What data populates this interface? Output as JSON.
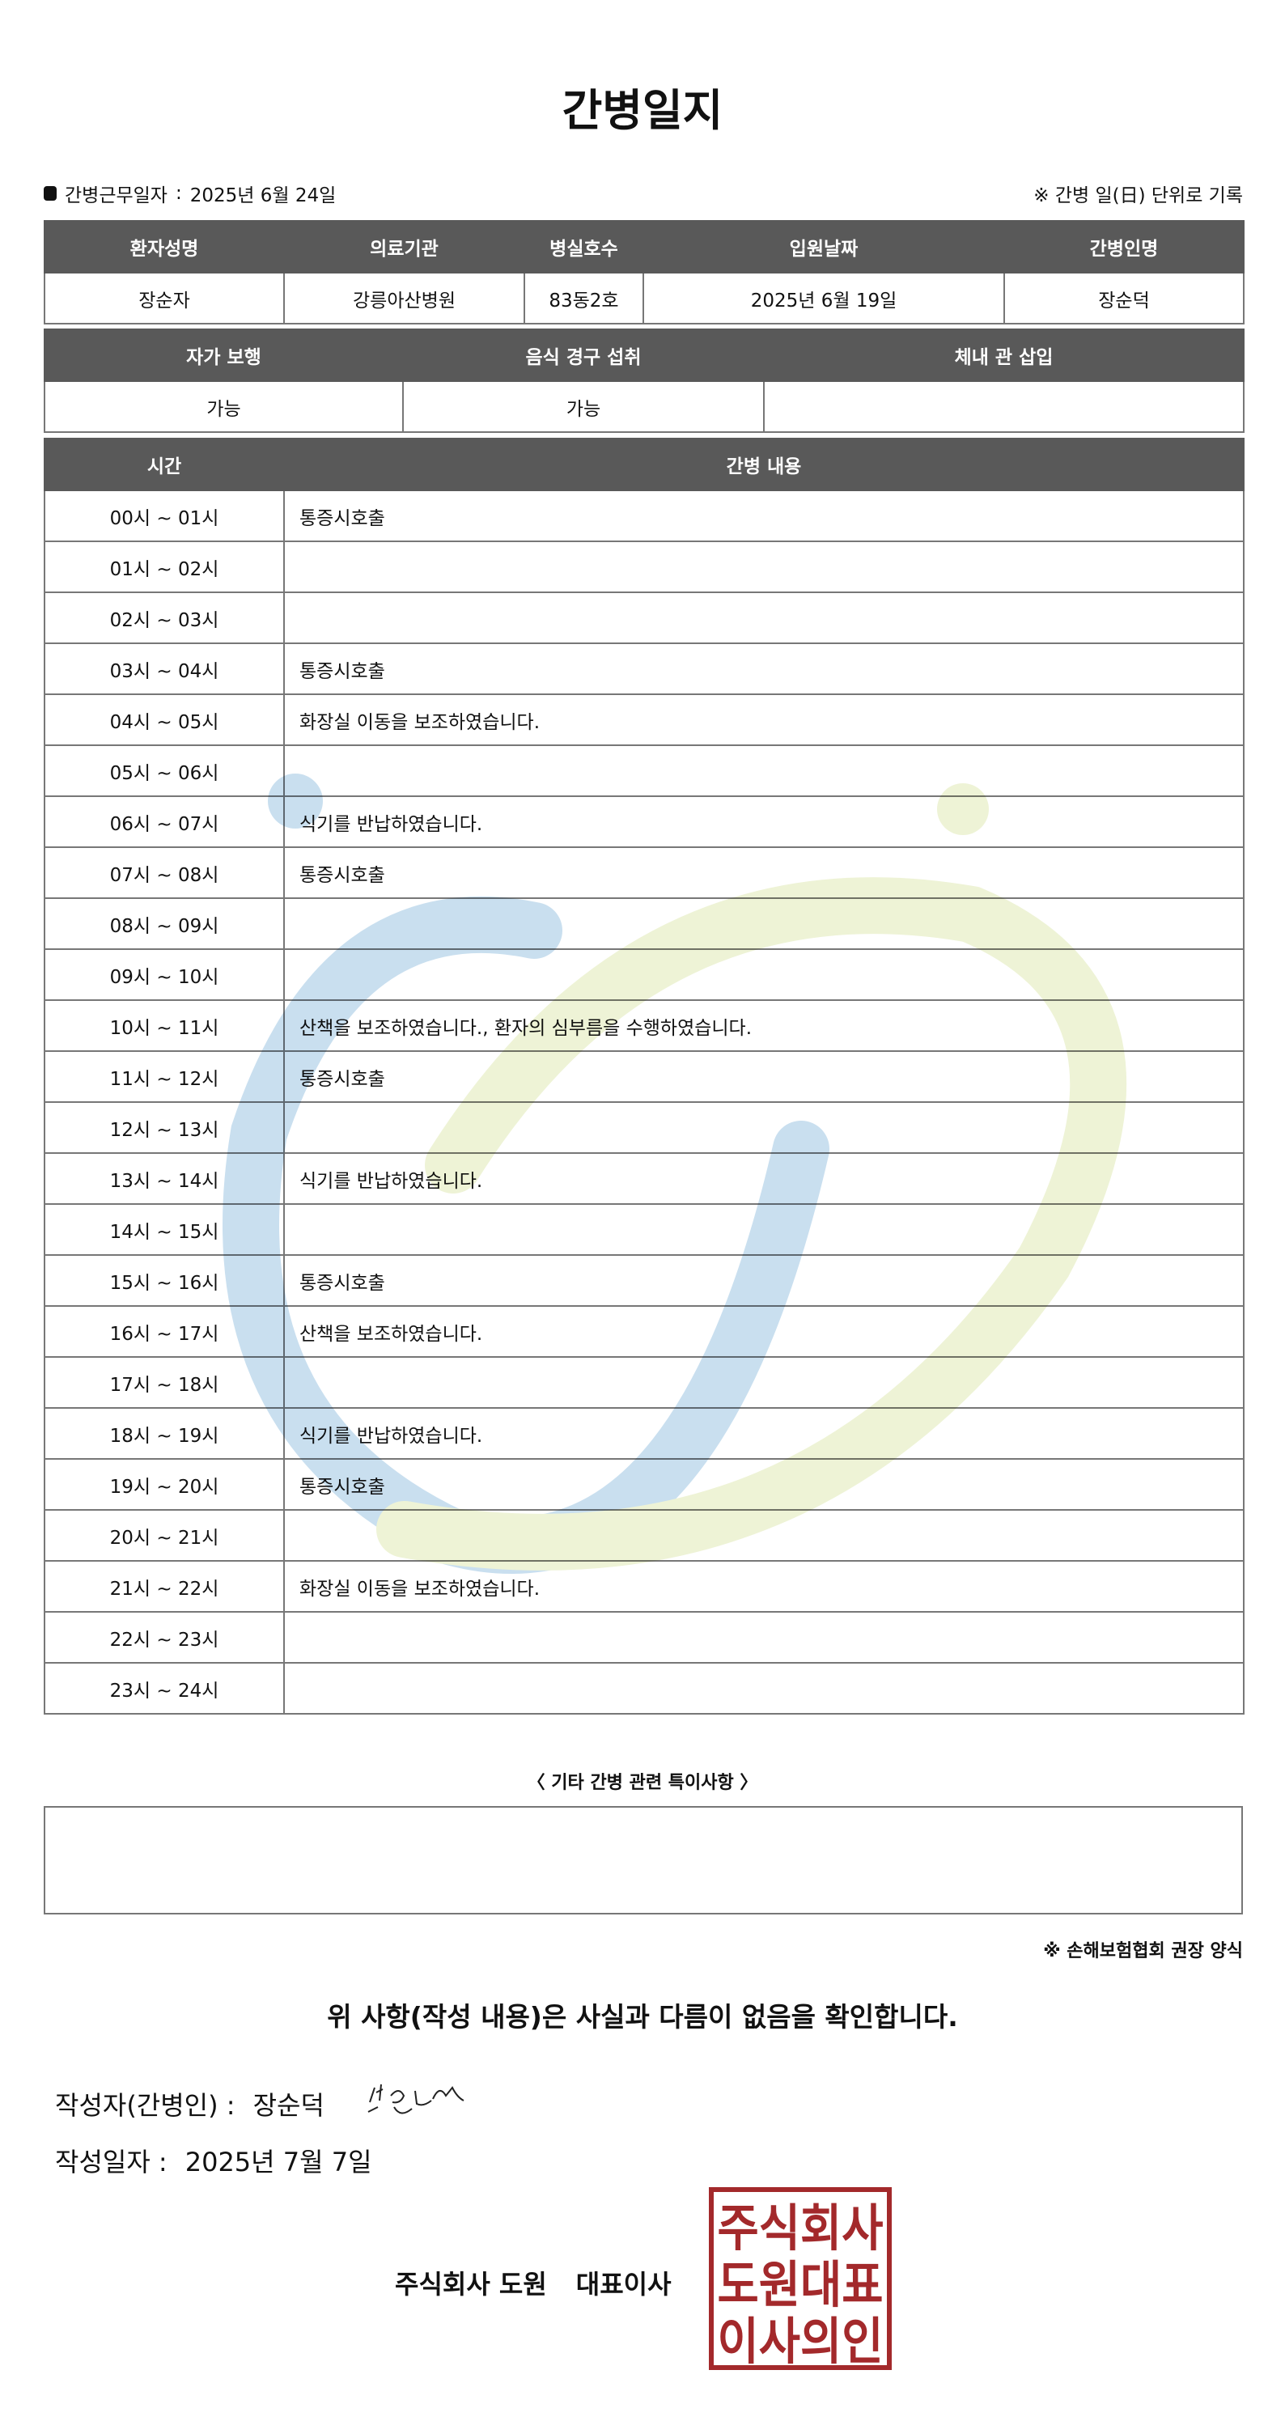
{
  "title": "간병일지",
  "work_date": {
    "label": "간병근무일자",
    "separator": ":",
    "value": "2025년 6월 24일"
  },
  "unit_note": "※ 간병 일(日) 단위로 기록",
  "patient_table": {
    "headers": [
      "환자성명",
      "의료기관",
      "병실호수",
      "입원날짜",
      "간병인명"
    ],
    "values": [
      "장순자",
      "강릉아산병원",
      "83동2호",
      "2025년 6월 19일",
      "장순덕"
    ]
  },
  "status_table": {
    "headers": [
      "자가 보행",
      "음식 경구 섭취",
      "체내 관 삽입"
    ],
    "values": [
      "가능",
      "가능",
      ""
    ]
  },
  "log_table": {
    "headers": [
      "시간",
      "간병 내용"
    ],
    "rows": [
      {
        "time": "00시 ~ 01시",
        "content": "통증시호출"
      },
      {
        "time": "01시 ~ 02시",
        "content": ""
      },
      {
        "time": "02시 ~ 03시",
        "content": ""
      },
      {
        "time": "03시 ~ 04시",
        "content": "통증시호출"
      },
      {
        "time": "04시 ~ 05시",
        "content": "화장실 이동을 보조하였습니다."
      },
      {
        "time": "05시 ~ 06시",
        "content": ""
      },
      {
        "time": "06시 ~ 07시",
        "content": "식기를 반납하였습니다."
      },
      {
        "time": "07시 ~ 08시",
        "content": "통증시호출"
      },
      {
        "time": "08시 ~ 09시",
        "content": ""
      },
      {
        "time": "09시 ~ 10시",
        "content": ""
      },
      {
        "time": "10시 ~ 11시",
        "content": "산책을 보조하였습니다., 환자의 심부름을 수행하였습니다."
      },
      {
        "time": "11시 ~ 12시",
        "content": "통증시호출"
      },
      {
        "time": "12시 ~ 13시",
        "content": ""
      },
      {
        "time": "13시 ~ 14시",
        "content": "식기를 반납하였습니다."
      },
      {
        "time": "14시 ~ 15시",
        "content": ""
      },
      {
        "time": "15시 ~ 16시",
        "content": "통증시호출"
      },
      {
        "time": "16시 ~ 17시",
        "content": "산책을 보조하였습니다."
      },
      {
        "time": "17시 ~ 18시",
        "content": ""
      },
      {
        "time": "18시 ~ 19시",
        "content": "식기를 반납하였습니다."
      },
      {
        "time": "19시 ~ 20시",
        "content": "통증시호출"
      },
      {
        "time": "20시 ~ 21시",
        "content": ""
      },
      {
        "time": "21시 ~ 22시",
        "content": "화장실 이동을 보조하였습니다."
      },
      {
        "time": "22시 ~ 23시",
        "content": ""
      },
      {
        "time": "23시 ~ 24시",
        "content": ""
      }
    ]
  },
  "etc": {
    "title": "〈 기타 간병 관련 특이사항 〉",
    "content": ""
  },
  "insurance_note": "※ 손해보험협회 권장 양식",
  "confirm_text": "위 사항(작성 내용)은 사실과 다름이 없음을 확인합니다.",
  "writer": {
    "label": "작성자(간병인) :",
    "name": "장순덕",
    "signature_text": "장순덕"
  },
  "written_date": {
    "label": "작성일자 :",
    "value": "2025년 7월 7일"
  },
  "company": {
    "name": "주식회사 도원",
    "title": "대표이사"
  },
  "stamp": {
    "text": [
      "주식회사",
      "도원대표",
      "이사의인"
    ],
    "color": "#a3292b"
  },
  "watermark_colors": {
    "blue": "#c9dfef",
    "green": "#eef3d6"
  },
  "header_bg": "#595959"
}
